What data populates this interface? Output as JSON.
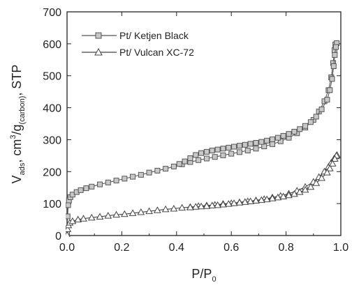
{
  "chart_data": {
    "type": "scatter",
    "xlabel": {
      "main": "P/P",
      "sub": "0"
    },
    "ylabel": {
      "p1": "V",
      "s1": "ads",
      "p2": ", cm",
      "sup": "3",
      "p3": "/g",
      "s2": "(carbon)",
      "p4": ", STP"
    },
    "xlim": [
      0.0,
      1.0
    ],
    "ylim": [
      0,
      700
    ],
    "x_ticks": [
      "0.0",
      "0.2",
      "0.4",
      "0.6",
      "0.8",
      "1.0"
    ],
    "y_ticks": [
      "0",
      "100",
      "200",
      "300",
      "400",
      "500",
      "600",
      "700"
    ],
    "legend": {
      "position": "top-left"
    },
    "series": [
      {
        "name": "Pt/ Ketjen Black",
        "marker": "square",
        "color": "#555555",
        "fill": "#c8c8c8",
        "branches": [
          {
            "points": [
              [
                0.0,
                8
              ],
              [
                0.002,
                60
              ],
              [
                0.004,
                95
              ],
              [
                0.007,
                110
              ],
              [
                0.012,
                120
              ],
              [
                0.02,
                128
              ],
              [
                0.035,
                136
              ],
              [
                0.05,
                142
              ],
              [
                0.07,
                148
              ],
              [
                0.09,
                153
              ],
              [
                0.12,
                160
              ],
              [
                0.15,
                166
              ],
              [
                0.18,
                172
              ],
              [
                0.21,
                178
              ],
              [
                0.24,
                184
              ],
              [
                0.27,
                190
              ],
              [
                0.3,
                197
              ],
              [
                0.33,
                203
              ],
              [
                0.36,
                209
              ],
              [
                0.39,
                216
              ],
              [
                0.42,
                223
              ],
              [
                0.45,
                230
              ],
              [
                0.48,
                236
              ],
              [
                0.51,
                241
              ],
              [
                0.54,
                246
              ],
              [
                0.57,
                251
              ],
              [
                0.6,
                256
              ],
              [
                0.63,
                261
              ],
              [
                0.66,
                266
              ],
              [
                0.69,
                272
              ],
              [
                0.72,
                279
              ],
              [
                0.75,
                286
              ],
              [
                0.78,
                295
              ],
              [
                0.81,
                306
              ],
              [
                0.84,
                320
              ],
              [
                0.87,
                338
              ],
              [
                0.9,
                362
              ],
              [
                0.92,
                388
              ],
              [
                0.94,
                420
              ],
              [
                0.955,
                455
              ],
              [
                0.965,
                495
              ],
              [
                0.972,
                540
              ],
              [
                0.977,
                580
              ],
              [
                0.98,
                598
              ]
            ]
          },
          {
            "points": [
              [
                0.985,
                602
              ],
              [
                0.982,
                590
              ],
              [
                0.978,
                565
              ],
              [
                0.974,
                530
              ],
              [
                0.968,
                490
              ],
              [
                0.96,
                455
              ],
              [
                0.95,
                425
              ],
              [
                0.93,
                395
              ],
              [
                0.91,
                372
              ],
              [
                0.89,
                355
              ],
              [
                0.87,
                343
              ],
              [
                0.85,
                333
              ],
              [
                0.83,
                325
              ],
              [
                0.81,
                318
              ],
              [
                0.79,
                312
              ],
              [
                0.77,
                306
              ],
              [
                0.75,
                301
              ],
              [
                0.73,
                297
              ],
              [
                0.71,
                293
              ],
              [
                0.69,
                290
              ],
              [
                0.67,
                287
              ],
              [
                0.65,
                284
              ],
              [
                0.63,
                281
              ],
              [
                0.61,
                278
              ],
              [
                0.59,
                275
              ],
              [
                0.57,
                272
              ],
              [
                0.55,
                269
              ],
              [
                0.53,
                266
              ],
              [
                0.51,
                262
              ],
              [
                0.49,
                258
              ],
              [
                0.47,
                252
              ],
              [
                0.45,
                242
              ],
              [
                0.43,
                232
              ],
              [
                0.41,
                224
              ]
            ]
          }
        ]
      },
      {
        "name": "Pt/ Vulcan XC-72",
        "marker": "triangle",
        "color": "#444444",
        "fill": "#ffffff",
        "branches": [
          {
            "points": [
              [
                0.0,
                2
              ],
              [
                0.002,
                20
              ],
              [
                0.005,
                32
              ],
              [
                0.01,
                40
              ],
              [
                0.02,
                45
              ],
              [
                0.04,
                50
              ],
              [
                0.06,
                53
              ],
              [
                0.09,
                56
              ],
              [
                0.12,
                59
              ],
              [
                0.15,
                62
              ],
              [
                0.18,
                65
              ],
              [
                0.21,
                67
              ],
              [
                0.24,
                70
              ],
              [
                0.27,
                73
              ],
              [
                0.3,
                76
              ],
              [
                0.33,
                79
              ],
              [
                0.36,
                82
              ],
              [
                0.39,
                84
              ],
              [
                0.42,
                87
              ],
              [
                0.45,
                89
              ],
              [
                0.48,
                92
              ],
              [
                0.51,
                94
              ],
              [
                0.54,
                96
              ],
              [
                0.57,
                99
              ],
              [
                0.6,
                101
              ],
              [
                0.63,
                104
              ],
              [
                0.66,
                107
              ],
              [
                0.69,
                110
              ],
              [
                0.72,
                114
              ],
              [
                0.75,
                119
              ],
              [
                0.78,
                124
              ],
              [
                0.81,
                131
              ],
              [
                0.84,
                140
              ],
              [
                0.87,
                152
              ],
              [
                0.9,
                168
              ],
              [
                0.92,
                183
              ],
              [
                0.94,
                200
              ],
              [
                0.955,
                215
              ],
              [
                0.965,
                228
              ],
              [
                0.975,
                240
              ],
              [
                0.982,
                248
              ],
              [
                0.986,
                252
              ]
            ]
          },
          {
            "points": [
              [
                0.984,
                250
              ],
              [
                0.978,
                240
              ],
              [
                0.97,
                225
              ],
              [
                0.96,
                210
              ],
              [
                0.95,
                197
              ],
              [
                0.93,
                180
              ],
              [
                0.91,
                164
              ],
              [
                0.89,
                152
              ],
              [
                0.87,
                143
              ],
              [
                0.85,
                136
              ],
              [
                0.83,
                130
              ],
              [
                0.81,
                126
              ],
              [
                0.79,
                122
              ],
              [
                0.77,
                119
              ],
              [
                0.75,
                116
              ],
              [
                0.73,
                113
              ],
              [
                0.71,
                111
              ],
              [
                0.69,
                109
              ],
              [
                0.67,
                107
              ],
              [
                0.65,
                105
              ],
              [
                0.63,
                103
              ],
              [
                0.61,
                101
              ],
              [
                0.59,
                99
              ],
              [
                0.57,
                97
              ],
              [
                0.55,
                95
              ],
              [
                0.53,
                94
              ],
              [
                0.51,
                92
              ],
              [
                0.49,
                91
              ],
              [
                0.47,
                90
              ],
              [
                0.45,
                88
              ]
            ]
          }
        ]
      }
    ]
  }
}
